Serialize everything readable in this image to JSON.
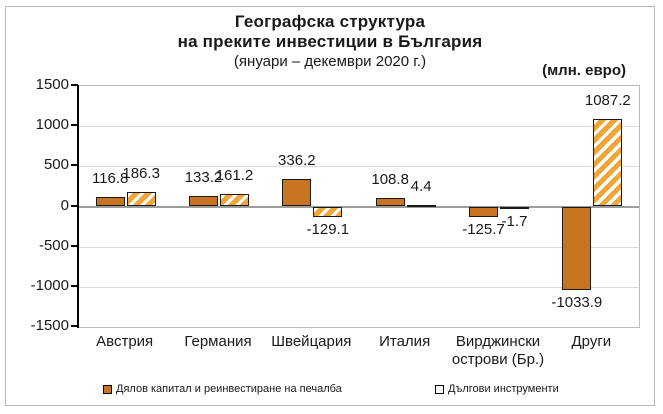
{
  "title": {
    "line1": "Географска структура",
    "line2": "на преките инвестиции в България",
    "line3": "(януари – декември 2020 г.)"
  },
  "units_label": "(млн. евро)",
  "legend": [
    {
      "label": "Дялов капитал и реинвестиране на печалба",
      "swatch": "solid"
    },
    {
      "label": "Дългови инструменти",
      "swatch": "hatched"
    }
  ],
  "colors": {
    "solid_bar": "#c97420",
    "hatch_stripe": "#f1a537",
    "hatch_background": "#ffffff",
    "bar_border": "#1a1a1a",
    "gridline": "#dcdcdc",
    "zero_line": "#9c9c9c",
    "plot_border": "#b9b9b9",
    "axis": "#000000"
  },
  "chart_data": {
    "type": "bar",
    "title": "Географска структура на преките инвестиции в България (януари – декември 2020 г.)",
    "ylabel": "(млн. евро)",
    "categories": [
      "Австрия",
      "Германия",
      "Швейцария",
      "Италия",
      "Вирджински острови (Бр.)",
      "Други"
    ],
    "series": [
      {
        "name": "Дялов капитал и реинвестиране на печалба",
        "style": "solid",
        "values": [
          116.8,
          133.2,
          336.2,
          108.8,
          -125.7,
          -1033.9
        ]
      },
      {
        "name": "Дългови инструменти",
        "style": "hatched",
        "values": [
          186.3,
          161.2,
          -129.1,
          4.4,
          -1.7,
          1087.2
        ]
      }
    ],
    "ylim": [
      -1500,
      1500
    ],
    "yticks": [
      1500,
      1000,
      500,
      0,
      -500,
      -1000,
      -1500
    ],
    "grid": true,
    "legend_position": "bottom"
  }
}
